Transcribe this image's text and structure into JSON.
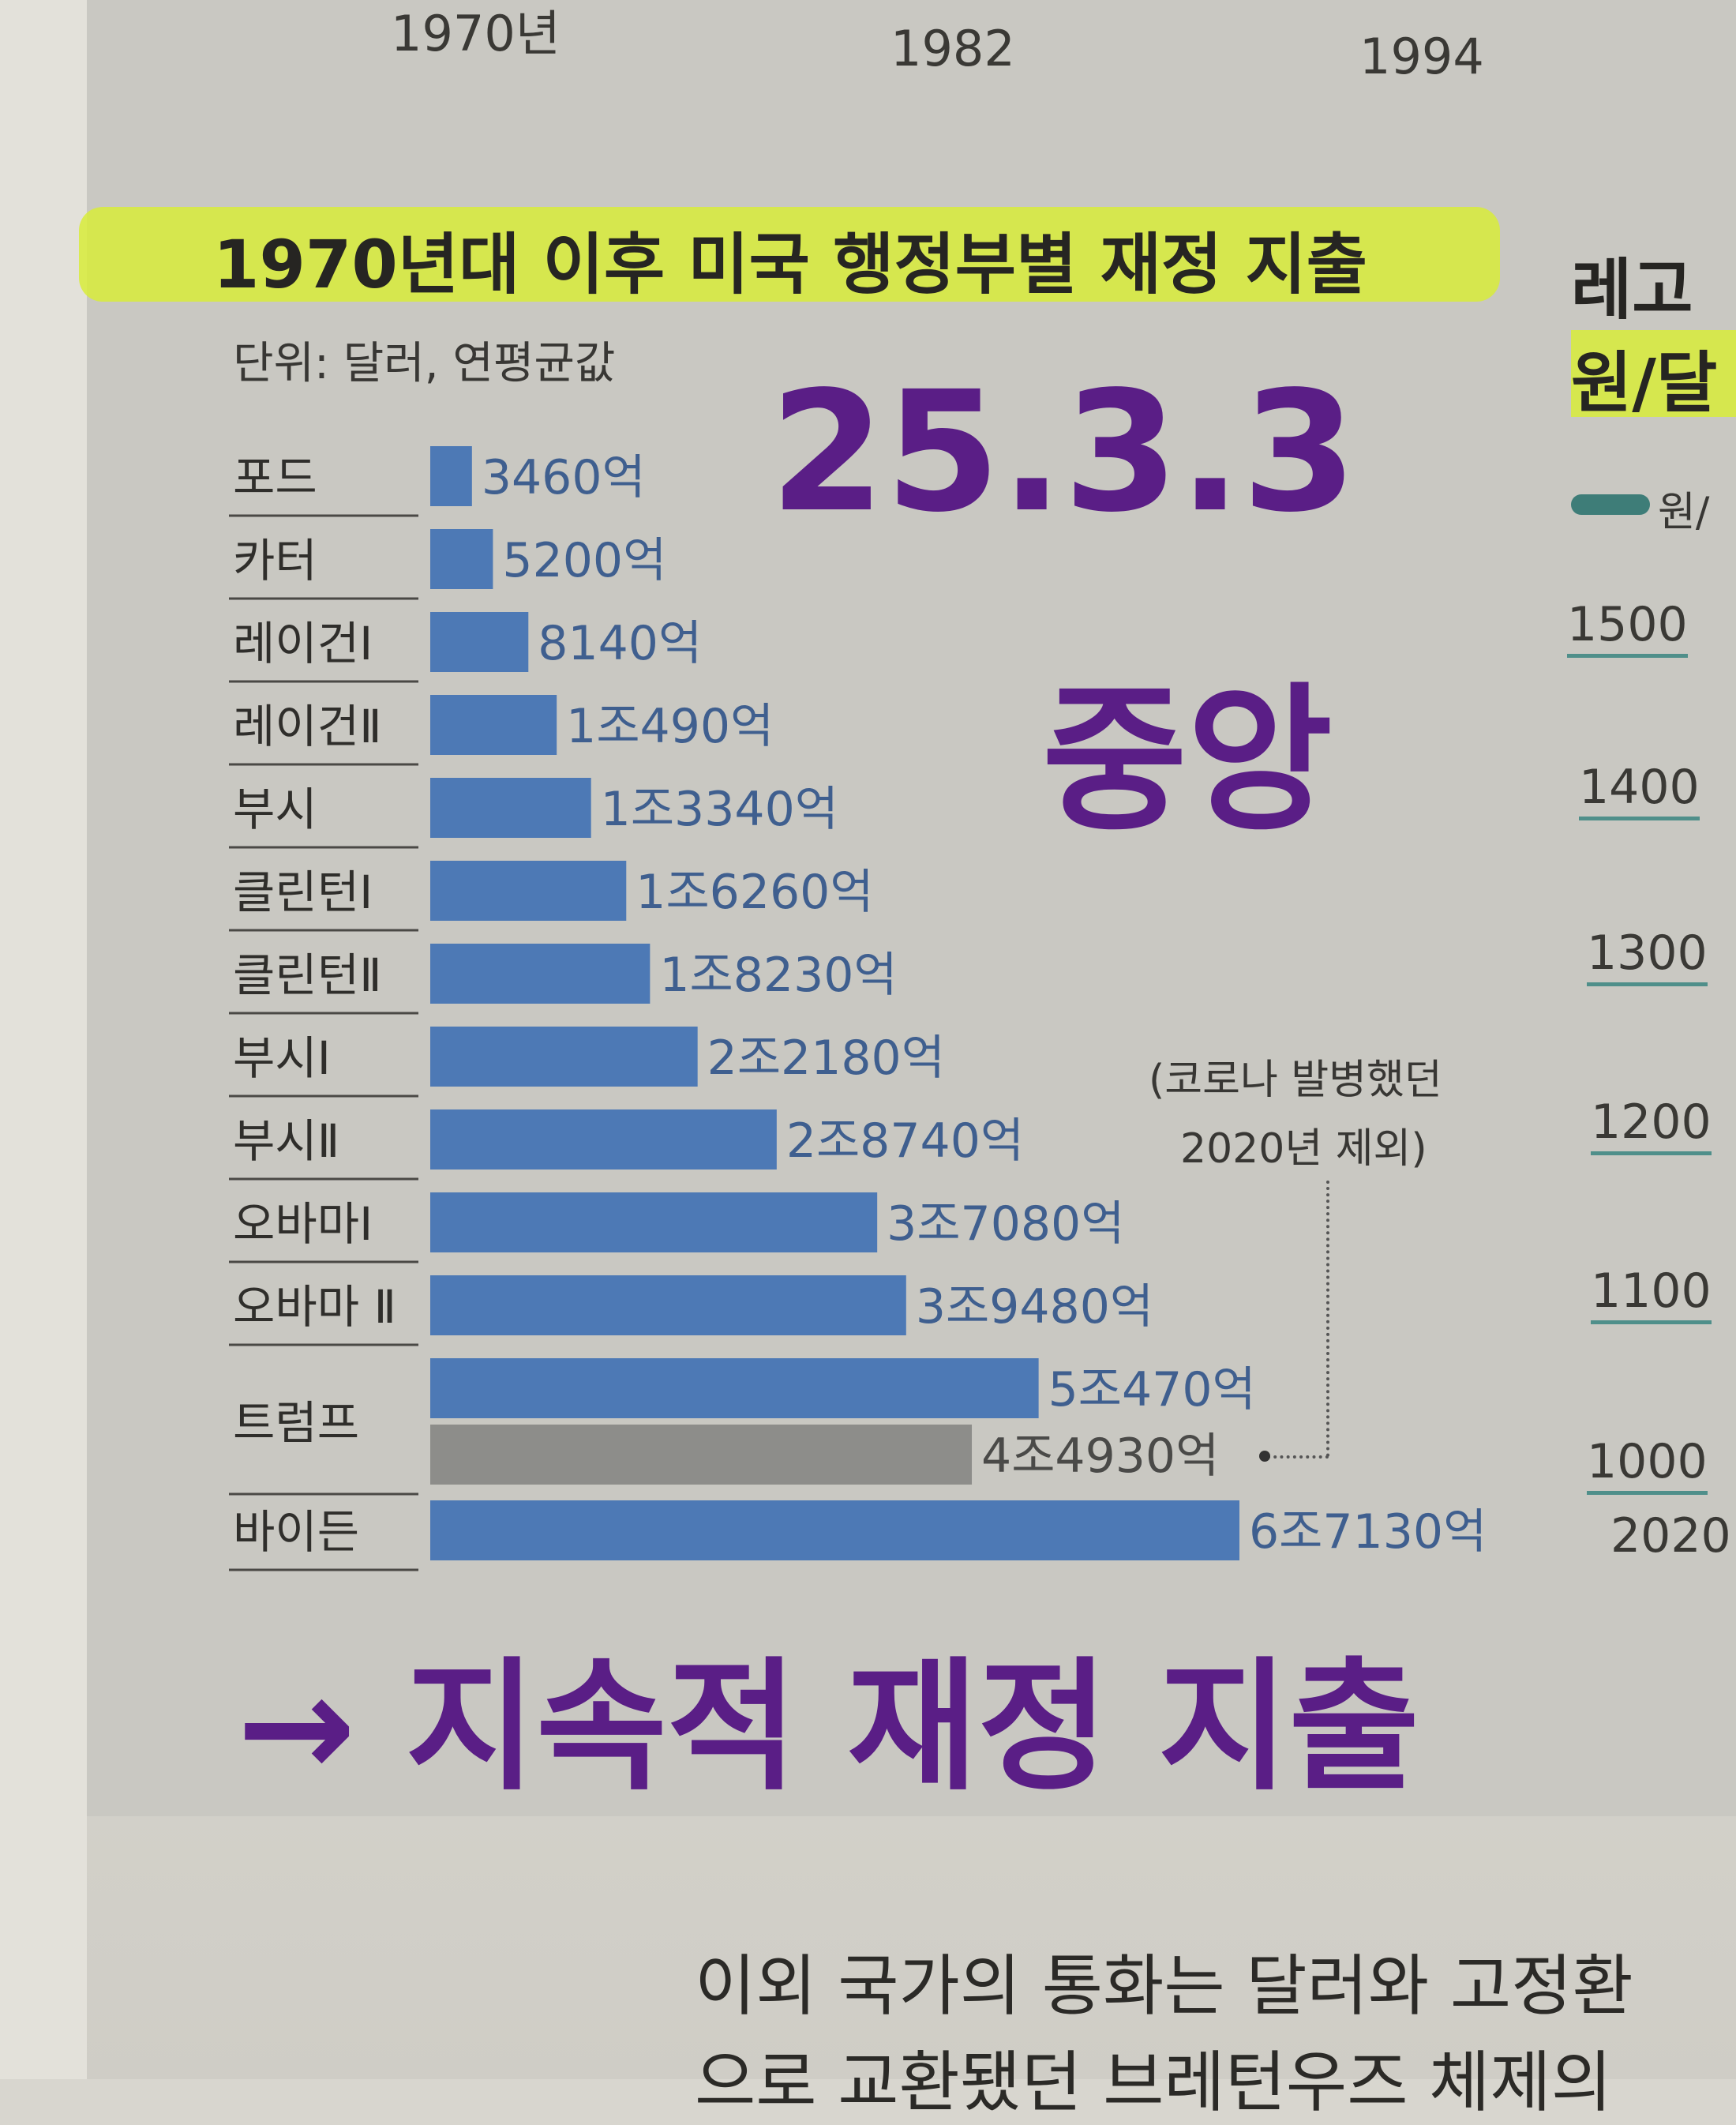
{
  "top_axis": {
    "years": [
      "1970년",
      "1982",
      "1994"
    ]
  },
  "title": "1970년대 이후 미국 행정부별 재정 지출",
  "unit_label": "단위: 달러, 연평균값",
  "right_chart": {
    "title_line1": "레고",
    "title_line2": "원/달",
    "legend": "원/",
    "yticks": [
      "1500",
      "1400",
      "1300",
      "1200",
      "1100",
      "1000"
    ],
    "x_label": "2020"
  },
  "annotation": {
    "line1": "(코로나 발병했던",
    "line2": "2020년 제외)"
  },
  "handwriting": {
    "date": "25.3.3",
    "source": "중앙",
    "footer": "→ 지속적 재정 지출"
  },
  "body_text": {
    "line1": "이외 국가의 통화는 달러와 고정환",
    "line2": "으로 교환됐던 브레턴우즈 체제의"
  },
  "chart_data": {
    "type": "bar",
    "orientation": "horizontal",
    "title": "1970년대 이후 미국 행정부별 재정 지출",
    "unit": "단위: 달러, 연평균값",
    "rows": [
      {
        "category": "포드",
        "bars": [
          {
            "value": 346,
            "label": "3460억",
            "color": "#4d79b5"
          }
        ]
      },
      {
        "category": "카터",
        "bars": [
          {
            "value": 520,
            "label": "5200억",
            "color": "#4d79b5"
          }
        ]
      },
      {
        "category": "레이건Ⅰ",
        "bars": [
          {
            "value": 814,
            "label": "8140억",
            "color": "#4d79b5"
          }
        ]
      },
      {
        "category": "레이건Ⅱ",
        "bars": [
          {
            "value": 1049,
            "label": "1조490억",
            "color": "#4d79b5"
          }
        ]
      },
      {
        "category": "부시",
        "bars": [
          {
            "value": 1334,
            "label": "1조3340억",
            "color": "#4d79b5"
          }
        ]
      },
      {
        "category": "클린턴Ⅰ",
        "bars": [
          {
            "value": 1626,
            "label": "1조6260억",
            "color": "#4d79b5"
          }
        ]
      },
      {
        "category": "클린턴Ⅱ",
        "bars": [
          {
            "value": 1823,
            "label": "1조8230억",
            "color": "#4d79b5"
          }
        ]
      },
      {
        "category": "부시Ⅰ",
        "bars": [
          {
            "value": 2218,
            "label": "2조2180억",
            "color": "#4d79b5"
          }
        ]
      },
      {
        "category": "부시Ⅱ",
        "bars": [
          {
            "value": 2874,
            "label": "2조8740억",
            "color": "#4d79b5"
          }
        ]
      },
      {
        "category": "오바마Ⅰ",
        "bars": [
          {
            "value": 3708,
            "label": "3조7080억",
            "color": "#4d79b5"
          }
        ]
      },
      {
        "category": "오바마 Ⅱ",
        "bars": [
          {
            "value": 3948,
            "label": "3조9480억",
            "color": "#4d79b5"
          }
        ]
      },
      {
        "category": "트럼프",
        "bars": [
          {
            "value": 5047,
            "label": "5조470억",
            "color": "#4d79b5"
          },
          {
            "value": 4493,
            "label": "4조4930억",
            "color": "#8d8d8a"
          }
        ]
      },
      {
        "category": "바이든",
        "bars": [
          {
            "value": 6713,
            "label": "6조7130억",
            "color": "#4d79b5"
          }
        ]
      }
    ]
  }
}
